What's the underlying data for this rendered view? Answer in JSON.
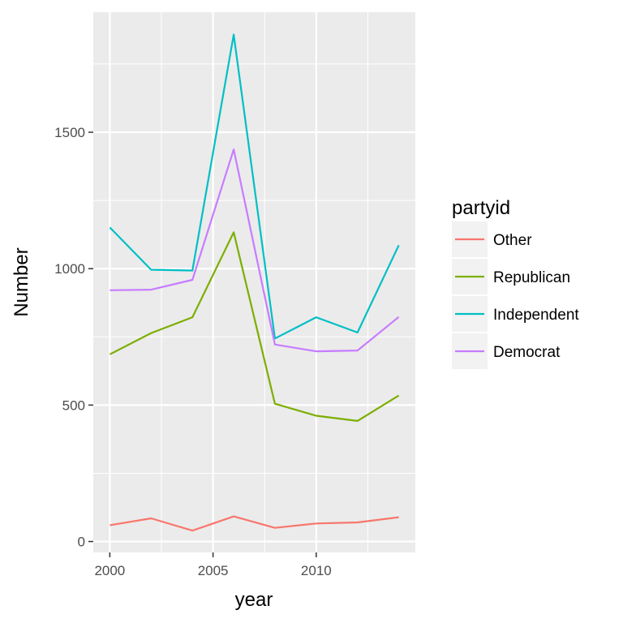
{
  "chart_data": {
    "type": "line",
    "xlabel": "year",
    "ylabel": "Number",
    "xlim": [
      1999.2,
      2014.8
    ],
    "ylim": [
      -40,
      1940
    ],
    "x_ticks": [
      2000,
      2005,
      2010
    ],
    "x_minor_ticks": [
      2002.5,
      2007.5,
      2012.5
    ],
    "y_ticks": [
      0,
      500,
      1000,
      1500
    ],
    "y_minor_ticks": [
      250,
      750,
      1250,
      1750
    ],
    "grid": true,
    "legend": {
      "title": "partyid",
      "position": "right"
    },
    "x": [
      2000,
      2002,
      2004,
      2006,
      2008,
      2010,
      2012,
      2014
    ],
    "series": [
      {
        "name": "Other",
        "color": "#F8766D",
        "values": [
          60,
          85,
          40,
          92,
          50,
          66,
          70,
          89
        ]
      },
      {
        "name": "Republican",
        "color": "#7CAE00",
        "values": [
          686,
          764,
          822,
          1133,
          505,
          461,
          442,
          535
        ]
      },
      {
        "name": "Independent",
        "color": "#00BFC4",
        "values": [
          1151,
          996,
          993,
          1858,
          744,
          822,
          766,
          1086
        ]
      },
      {
        "name": "Democrat",
        "color": "#C77CFF",
        "values": [
          921,
          923,
          959,
          1437,
          722,
          697,
          700,
          823
        ]
      }
    ]
  }
}
